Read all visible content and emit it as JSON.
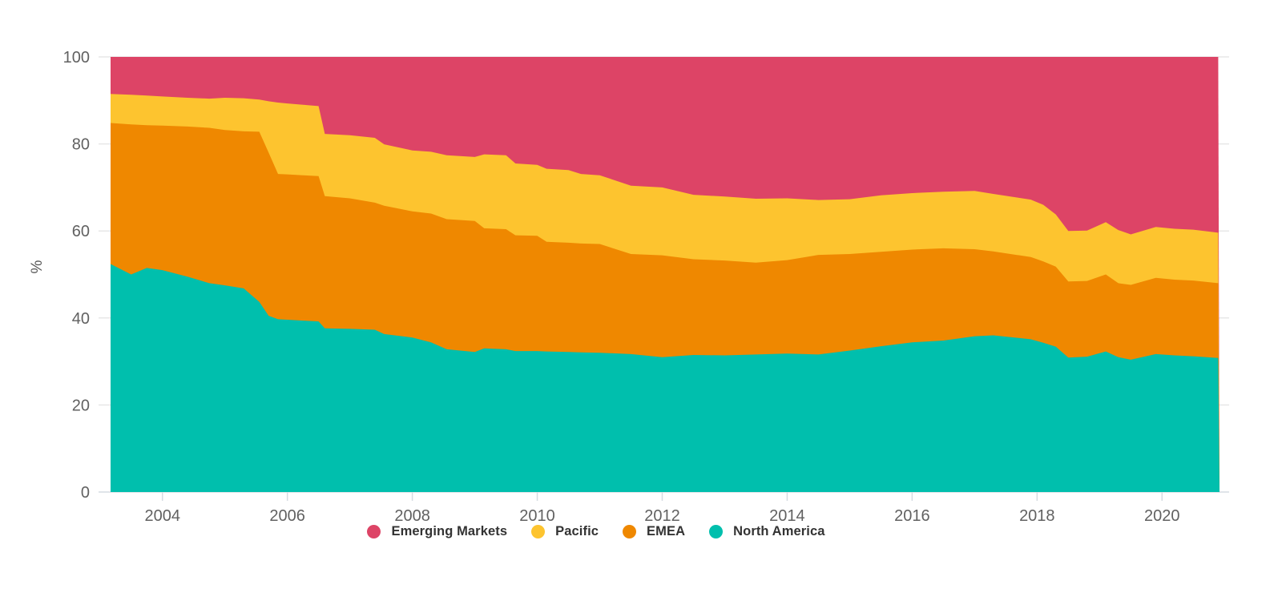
{
  "chart_data": {
    "type": "area",
    "stacked": true,
    "stack_unit": "percent",
    "title": "",
    "xlabel": "",
    "ylabel": "%",
    "ylim": [
      0,
      100
    ],
    "grid": true,
    "legend_position": "bottom",
    "y_ticks": [
      0,
      20,
      40,
      60,
      80,
      100
    ],
    "y_tick_labels": [
      "0",
      "20",
      "40",
      "60",
      "80",
      "100"
    ],
    "x_ticks": [
      2004,
      2006,
      2008,
      2010,
      2012,
      2014,
      2016,
      2018,
      2020
    ],
    "x_tick_labels": [
      "2004",
      "2006",
      "2008",
      "2010",
      "2012",
      "2014",
      "2016",
      "2018",
      "2020"
    ],
    "x_range": [
      2003.17,
      2020.92
    ],
    "x": [
      2003.17,
      2003.5,
      2003.75,
      2004.0,
      2004.4,
      2004.75,
      2005.0,
      2005.3,
      2005.55,
      2005.7,
      2005.85,
      2006.0,
      2006.25,
      2006.5,
      2006.6,
      2007.0,
      2007.4,
      2007.55,
      2008.0,
      2008.3,
      2008.55,
      2009.0,
      2009.15,
      2009.5,
      2009.65,
      2010.0,
      2010.15,
      2010.5,
      2010.7,
      2011.0,
      2011.5,
      2012.0,
      2012.5,
      2013.0,
      2013.5,
      2014.0,
      2014.5,
      2015.0,
      2015.5,
      2016.0,
      2016.5,
      2017.0,
      2017.3,
      2017.9,
      2018.1,
      2018.3,
      2018.5,
      2018.8,
      2019.1,
      2019.3,
      2019.5,
      2019.9,
      2020.2,
      2020.5,
      2020.9
    ],
    "series": [
      {
        "name": "North America",
        "color": "#00BFAD",
        "values": [
          52.4,
          50.0,
          51.5,
          51.0,
          49.5,
          48.0,
          47.5,
          46.8,
          43.7,
          40.5,
          39.7,
          39.6,
          39.4,
          39.2,
          37.6,
          37.5,
          37.3,
          36.3,
          35.5,
          34.4,
          32.8,
          32.2,
          33.0,
          32.8,
          32.4,
          32.4,
          32.3,
          32.2,
          32.1,
          32.0,
          31.7,
          31.0,
          31.5,
          31.4,
          31.6,
          31.8,
          31.6,
          32.5,
          33.5,
          34.4,
          34.8,
          35.8,
          36.0,
          35.1,
          34.3,
          33.4,
          30.9,
          31.1,
          32.3,
          31.0,
          30.4,
          31.7,
          31.4,
          31.2,
          30.8
        ]
      },
      {
        "name": "EMEA",
        "color": "#EF8800",
        "values": [
          32.4,
          34.5,
          32.8,
          33.2,
          34.5,
          35.7,
          35.7,
          36.1,
          39.1,
          37.5,
          33.4,
          33.4,
          33.4,
          33.4,
          30.4,
          30.0,
          29.2,
          29.5,
          29.0,
          29.6,
          29.9,
          30.1,
          27.6,
          27.6,
          26.6,
          26.5,
          25.2,
          25.1,
          25.0,
          25.0,
          23.0,
          23.4,
          22.0,
          21.8,
          21.1,
          21.5,
          22.9,
          22.2,
          21.7,
          21.3,
          21.2,
          20.0,
          19.3,
          18.9,
          18.7,
          18.4,
          17.5,
          17.4,
          17.7,
          17.0,
          17.2,
          17.5,
          17.4,
          17.4,
          17.2
        ]
      },
      {
        "name": "Pacific",
        "color": "#FDC42F",
        "values": [
          6.7,
          6.8,
          6.8,
          6.7,
          6.6,
          6.7,
          7.4,
          7.6,
          7.4,
          11.8,
          16.4,
          16.3,
          16.2,
          16.1,
          14.3,
          14.5,
          14.9,
          14.1,
          14.0,
          14.2,
          14.7,
          14.7,
          17.0,
          17.0,
          16.5,
          16.3,
          16.8,
          16.7,
          16.0,
          15.8,
          15.7,
          15.6,
          14.8,
          14.7,
          14.7,
          14.2,
          12.6,
          12.6,
          13.0,
          13.0,
          13.0,
          13.4,
          13.2,
          13.2,
          13.0,
          12.0,
          11.6,
          11.6,
          12.0,
          12.2,
          11.6,
          11.7,
          11.7,
          11.7,
          11.6
        ]
      },
      {
        "name": "Emerging Markets",
        "color": "#DD4466",
        "values": [
          8.5,
          8.7,
          8.9,
          9.1,
          9.4,
          9.6,
          9.4,
          9.5,
          9.8,
          10.2,
          10.5,
          10.7,
          11.0,
          11.3,
          17.7,
          18.0,
          18.6,
          20.1,
          21.5,
          21.8,
          22.6,
          23.0,
          22.4,
          22.6,
          24.5,
          24.8,
          25.7,
          26.0,
          26.9,
          27.2,
          29.6,
          30.0,
          31.7,
          32.1,
          32.6,
          32.5,
          32.9,
          32.7,
          31.8,
          31.3,
          31.0,
          30.8,
          31.5,
          32.8,
          34.0,
          36.2,
          40.0,
          39.9,
          38.0,
          39.8,
          40.8,
          39.1,
          39.5,
          39.7,
          40.4
        ]
      }
    ],
    "legend": [
      {
        "label": "Emerging Markets",
        "color": "#DD4466"
      },
      {
        "label": "Pacific",
        "color": "#FDC42F"
      },
      {
        "label": "EMEA",
        "color": "#EF8800"
      },
      {
        "label": "North America",
        "color": "#00BFAD"
      }
    ]
  },
  "style": {
    "tick_label_color": "#616161",
    "gridline_color": "#E7E7E7",
    "axis_color": "#D6DCE2",
    "background": "#FFFFFF"
  }
}
